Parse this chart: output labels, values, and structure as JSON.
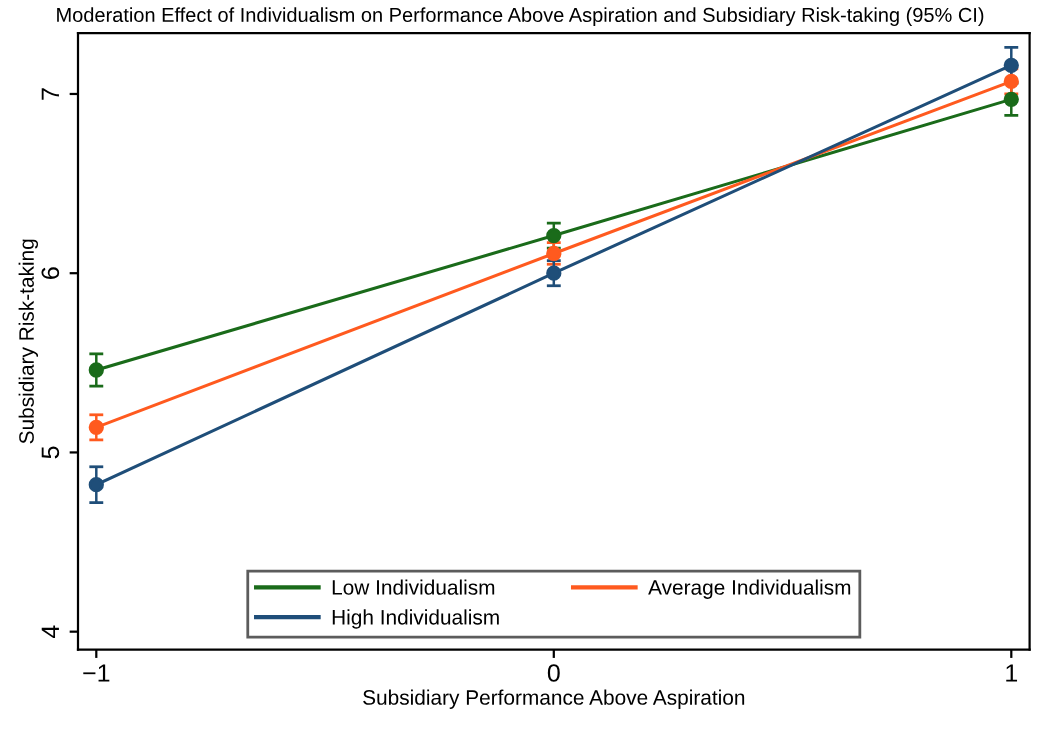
{
  "chart_data": {
    "type": "line",
    "title": "Moderation Effect of Individualism on Performance Above Aspiration and Subsidiary Risk-taking (95% CI)",
    "xlabel": "Subsidiary Performance Above Aspiration",
    "ylabel": "Subsidiary Risk-taking",
    "x": [
      -1,
      0,
      1
    ],
    "series": [
      {
        "name": "Low Individualism",
        "color": "#1a6b1a",
        "values": [
          5.46,
          6.21,
          6.97
        ],
        "errors": [
          0.09,
          0.07,
          0.09
        ]
      },
      {
        "name": "Average Individualism",
        "color": "#ff5a1f",
        "values": [
          5.14,
          6.11,
          7.07
        ],
        "errors": [
          0.07,
          0.06,
          0.07
        ]
      },
      {
        "name": "High Individualism",
        "color": "#1f4e79",
        "values": [
          4.82,
          6.0,
          7.16
        ],
        "errors": [
          0.1,
          0.07,
          0.1
        ]
      }
    ],
    "xlim": [
      -1.04,
      1.04
    ],
    "ylim": [
      3.9,
      7.34
    ],
    "xticks": [
      {
        "value": -1,
        "label": "−1"
      },
      0,
      1
    ],
    "yticks": [
      4,
      5,
      6,
      7
    ],
    "marker": "circle",
    "line_style": "solid",
    "grid": false,
    "legend": "bottom"
  }
}
